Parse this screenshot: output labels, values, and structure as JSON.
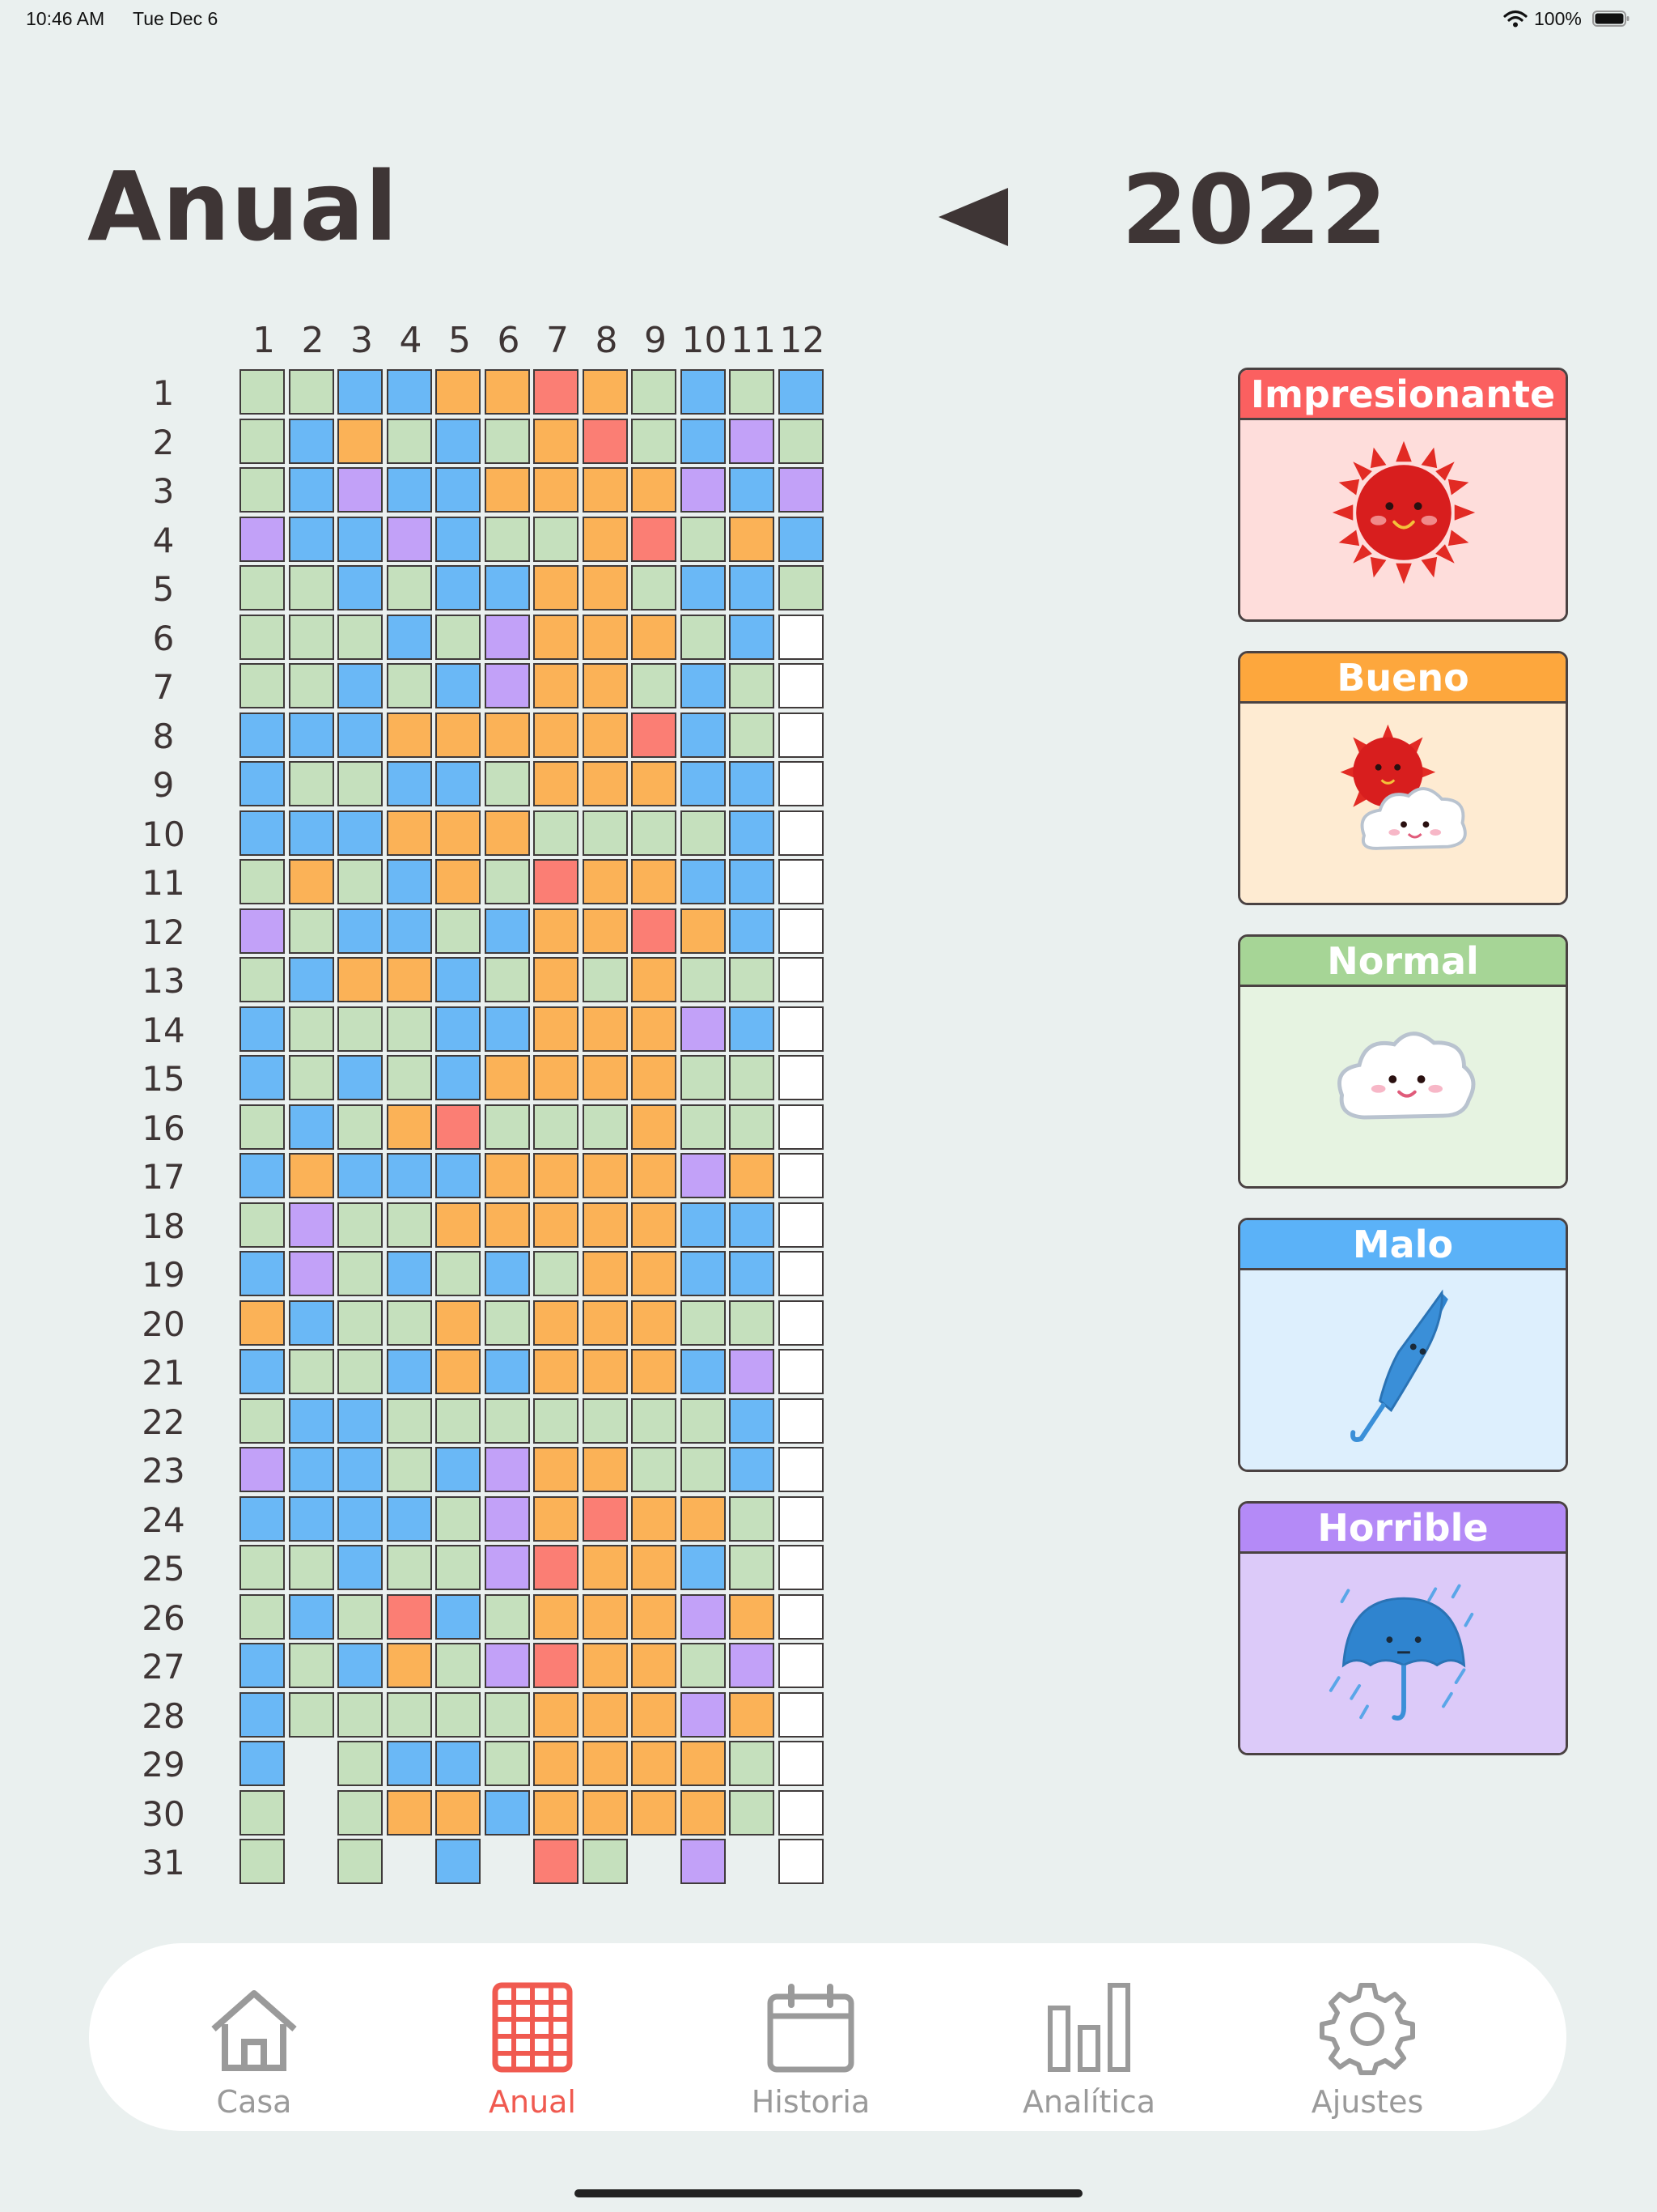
{
  "status": {
    "time": "10:46 AM",
    "date": "Tue Dec 6",
    "battery": "100%"
  },
  "header": {
    "title": "Anual",
    "year": "2022"
  },
  "grid": {
    "months": [
      "1",
      "2",
      "3",
      "4",
      "5",
      "6",
      "7",
      "8",
      "9",
      "10",
      "11",
      "12"
    ],
    "days": [
      "1",
      "2",
      "3",
      "4",
      "5",
      "6",
      "7",
      "8",
      "9",
      "10",
      "11",
      "12",
      "13",
      "14",
      "15",
      "16",
      "17",
      "18",
      "19",
      "20",
      "21",
      "22",
      "23",
      "24",
      "25",
      "26",
      "27",
      "28",
      "29",
      "30",
      "31"
    ],
    "colors": {
      "G": "#c5e0bd",
      "B": "#6ab8f6",
      "O": "#fbb257",
      "R": "#fb7e74",
      "P": "#c2a1f8",
      "W": "#ffffff"
    },
    "mood_rows": [
      "GGBBOOROGBGB",
      "GBOGBGORGBPG",
      "GBPBBOOOOPBP",
      "PBBPBGGORGOB",
      "GGBGBBOOGBBG",
      "GGGBGPOOOGBW",
      "GGBGBPOOGBGW",
      "BBBOOOOORBGW",
      "BGGBBGOOOBBW",
      "BBBOOOGGGGBW",
      "GOGBOGROOBBW",
      "PGBBGBOOROBW",
      "GBOOBGOGOGGW",
      "BGGGBBOOOPBW",
      "BGBGBOOOOGGW",
      "GBGORGGGOGGW",
      "BOBBBOOOOPOW",
      "GPGGOOOOOBBW",
      "BPGBGBGOOBBW",
      "OBGGOGOOOGGW",
      "BGGBOBOOOBPW",
      "GBBGGGGGGGBW",
      "PBBGBPOOGGBW",
      "BBBBGPOROOGW",
      "GGBGGPROOBGW",
      "GBGRBGOOOPOW",
      "BGBOGPROOGPW",
      "BGGGGGOOOPOW",
      "B-GBBGOOOOGW",
      "G-GOOBOOOOGW",
      "G-G-B-RG-P-W"
    ]
  },
  "legend": [
    {
      "label": "Impresionante",
      "head": "#fb6060",
      "body": "#fedddb",
      "icon": "sun-icon"
    },
    {
      "label": "Bueno",
      "head": "#fda73d",
      "body": "#feebd2",
      "icon": "sun-cloud-icon"
    },
    {
      "label": "Normal",
      "head": "#a6d596",
      "body": "#e6f3e1",
      "icon": "cloud-icon"
    },
    {
      "label": "Malo",
      "head": "#5bb2f8",
      "body": "#ddeffd",
      "icon": "closed-umbrella-icon"
    },
    {
      "label": "Horrible",
      "head": "#b48af7",
      "body": "#dccaf9",
      "icon": "umbrella-rain-icon"
    }
  ],
  "tabs": [
    {
      "label": "Casa",
      "icon": "house-icon",
      "active": false
    },
    {
      "label": "Anual",
      "icon": "grid-icon",
      "active": true
    },
    {
      "label": "Historia",
      "icon": "calendar-icon",
      "active": false
    },
    {
      "label": "Analítica",
      "icon": "bar-chart-icon",
      "active": false
    },
    {
      "label": "Ajustes",
      "icon": "gear-icon",
      "active": false
    }
  ]
}
